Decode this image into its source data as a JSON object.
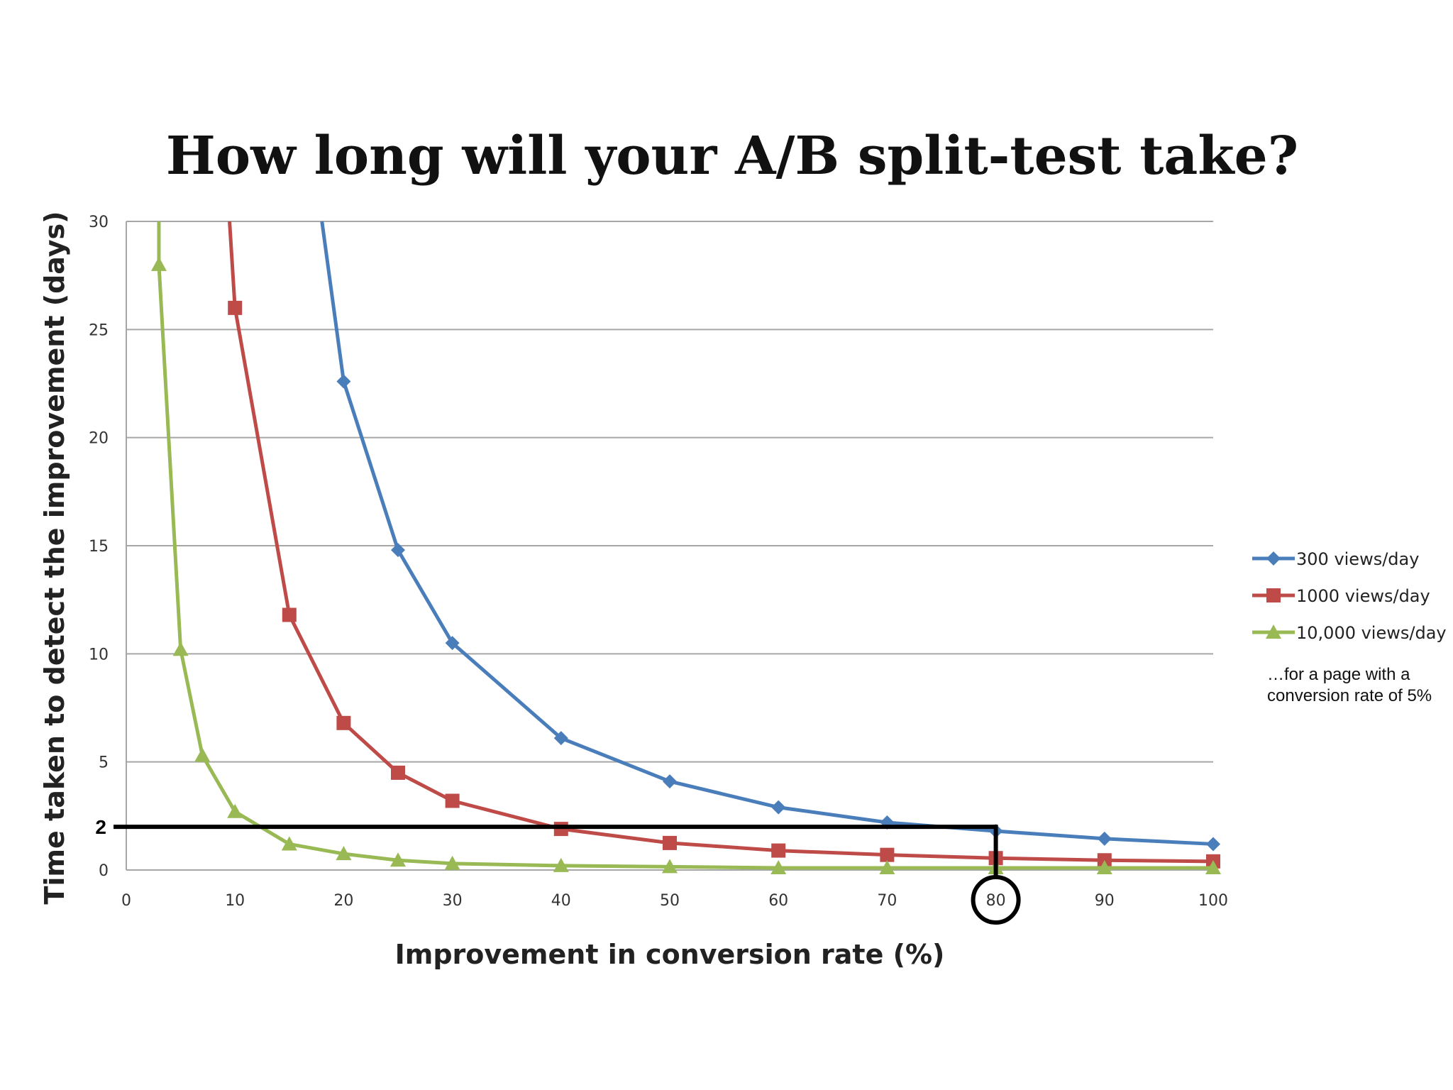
{
  "chart_data": {
    "type": "line",
    "title": "How long will your A/B split-test take?",
    "xlabel": "Improvement in conversion rate (%)",
    "ylabel": "Time taken to detect the improvement (days)",
    "xlim": [
      0,
      100
    ],
    "ylim": [
      0,
      30
    ],
    "x_ticks": [
      0,
      10,
      20,
      30,
      40,
      50,
      60,
      70,
      80,
      90,
      100
    ],
    "y_ticks": [
      0,
      5,
      10,
      15,
      20,
      25,
      30
    ],
    "grid": "horizontal",
    "legend_position": "right",
    "series": [
      {
        "name": "300 views/day",
        "color": "#4a7ebb",
        "marker": "diamond",
        "x": [
          18,
          20,
          25,
          30,
          40,
          50,
          60,
          70,
          80,
          90,
          100
        ],
        "y": [
          30,
          22.6,
          14.8,
          10.5,
          6.1,
          4.1,
          2.9,
          2.2,
          1.8,
          1.45,
          1.2
        ]
      },
      {
        "name": "1000 views/day",
        "color": "#be4b48",
        "marker": "square",
        "x": [
          9.5,
          10,
          15,
          20,
          25,
          30,
          40,
          50,
          60,
          70,
          80,
          90,
          100
        ],
        "y": [
          30,
          26,
          11.8,
          6.8,
          4.5,
          3.2,
          1.9,
          1.25,
          0.9,
          0.7,
          0.55,
          0.45,
          0.4
        ]
      },
      {
        "name": "10,000 views/day",
        "color": "#98b954",
        "marker": "triangle",
        "x": [
          3,
          3,
          5,
          7,
          10,
          15,
          20,
          25,
          30,
          40,
          50,
          60,
          70,
          80,
          90,
          100
        ],
        "y": [
          30,
          28,
          10.2,
          5.3,
          2.7,
          1.2,
          0.75,
          0.45,
          0.3,
          0.2,
          0.15,
          0.1,
          0.1,
          0.1,
          0.1,
          0.1
        ]
      }
    ],
    "annotations": {
      "note_line1": "…for a page with a",
      "note_line2": "conversion rate of 5%",
      "highlight_y_label": "2",
      "highlight_y": 2,
      "highlight_x": 80
    }
  }
}
